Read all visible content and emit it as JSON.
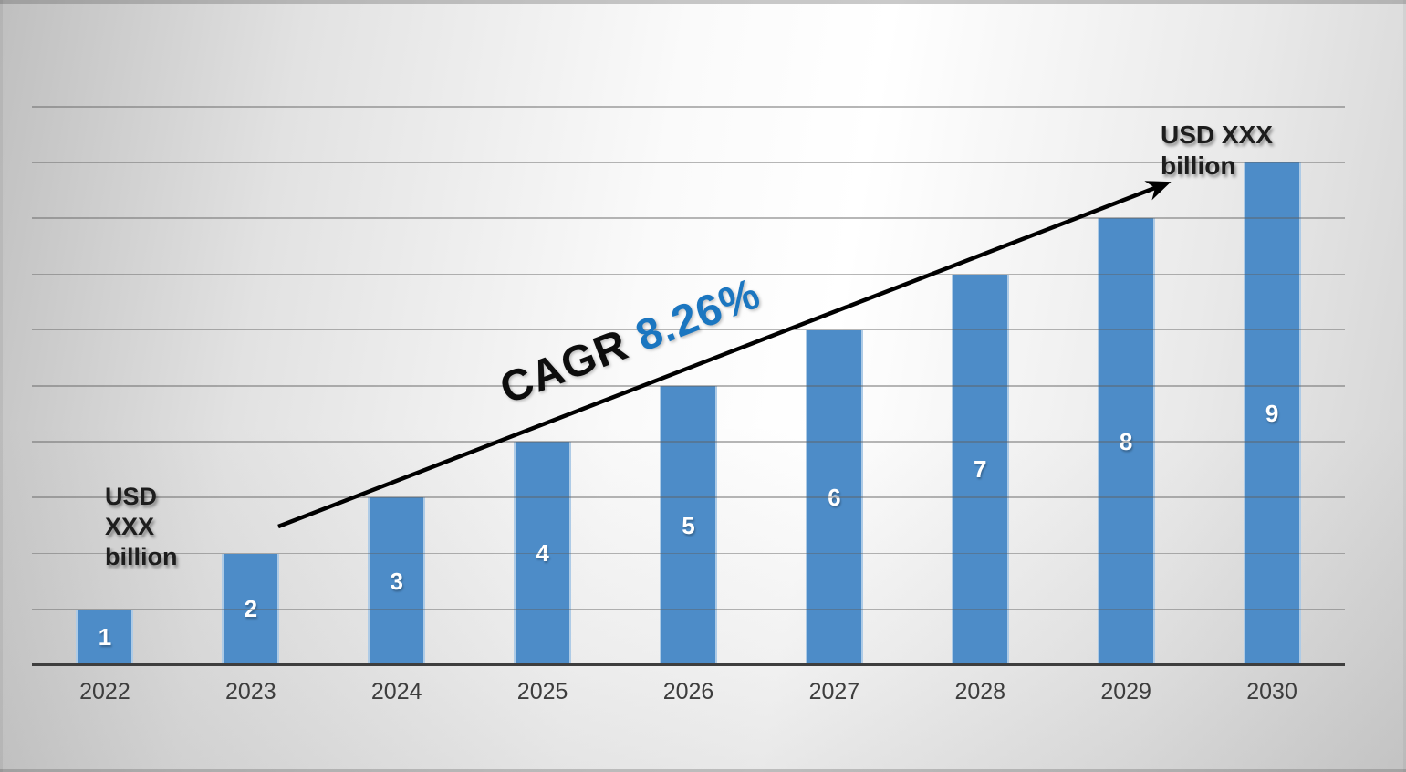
{
  "chart_data": {
    "type": "bar",
    "title": "",
    "categories": [
      "2022",
      "2023",
      "2024",
      "2025",
      "2026",
      "2027",
      "2028",
      "2029",
      "2030"
    ],
    "values": [
      1,
      2,
      3,
      4,
      5,
      6,
      7,
      8,
      9
    ],
    "value_label_color": "#ffffff",
    "bar_color": "#4d8cc8",
    "xlabel": "",
    "ylabel": "",
    "ylim": [
      0,
      10
    ],
    "gridlines": {
      "show": true,
      "interval": 1,
      "color": "#a8a8a8"
    },
    "legend": "none",
    "axis_line_color": "#3e3e3e",
    "annotations": {
      "start_label": {
        "lines": [
          "USD",
          "XXX",
          "billion"
        ],
        "color": "#1d1d1d"
      },
      "end_label": {
        "lines": [
          "USD XXX",
          "billion"
        ],
        "color": "#1d1d1d"
      },
      "cagr": {
        "prefix": "CAGR ",
        "value": "8.26%",
        "prefix_color": "#0d0d0d",
        "value_color": "#1b76c0"
      },
      "trend_arrow": {
        "color": "#000000",
        "from_category": "2023",
        "to": "end_label"
      }
    }
  }
}
